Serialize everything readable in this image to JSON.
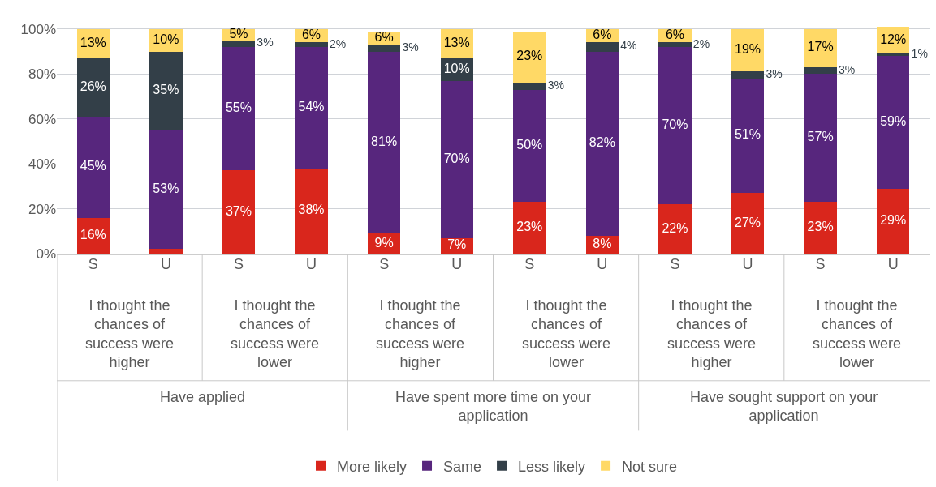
{
  "chart_data": {
    "type": "bar",
    "stacked": true,
    "categories": [
      "S",
      "U",
      "S",
      "U",
      "S",
      "U",
      "S",
      "U",
      "S",
      "U",
      "S",
      "U"
    ],
    "series": [
      {
        "name": "More likely",
        "color": "#d9261c",
        "values": [
          16,
          2,
          37,
          38,
          9,
          7,
          23,
          8,
          22,
          27,
          23,
          29
        ],
        "value_labels": [
          "16%",
          null,
          "37%",
          "38%",
          "9%",
          "7%",
          "23%",
          "8%",
          "22%",
          "27%",
          "23%",
          "29%"
        ]
      },
      {
        "name": "Same",
        "color": "#57267d",
        "values": [
          45,
          53,
          55,
          54,
          81,
          70,
          50,
          82,
          70,
          51,
          57,
          59
        ],
        "value_labels": [
          "45%",
          "53%",
          "55%",
          "54%",
          "81%",
          "70%",
          "50%",
          "82%",
          "70%",
          "51%",
          "57%",
          "59%"
        ]
      },
      {
        "name": "Less likely",
        "color": "#333f48",
        "values": [
          26,
          35,
          3,
          2,
          3,
          10,
          3,
          4,
          2,
          3,
          3,
          1
        ],
        "value_labels": [
          "26%",
          "35%",
          "3%",
          "2%",
          "3%",
          "10%",
          "3%",
          "4%",
          "2%",
          "3%",
          "3%",
          "1%"
        ]
      },
      {
        "name": "Not sure",
        "color": "#ffd966",
        "values": [
          13,
          10,
          5,
          6,
          6,
          13,
          23,
          6,
          6,
          19,
          17,
          12
        ],
        "value_labels": [
          "13%",
          "10%",
          "5%",
          "6%",
          "6%",
          "13%",
          "23%",
          "6%",
          "6%",
          "19%",
          "17%",
          "12%"
        ]
      }
    ],
    "annotations": [
      "I thought the chances of success were higher",
      "I thought the chances of success were lower",
      "I thought the chances of success were higher",
      "I thought the chances of success were lower",
      "I thought the chances of success were higher",
      "I thought the chances of success were lower",
      "Have applied",
      "Have spent more time on your application",
      "Have sought support on your application"
    ],
    "ylim": [
      0,
      101
    ],
    "yticks": [
      {
        "value": 0,
        "label": "0%"
      },
      {
        "value": 20,
        "label": "20%"
      },
      {
        "value": 40,
        "label": "40%"
      },
      {
        "value": 60,
        "label": "60%"
      },
      {
        "value": 80,
        "label": "80%"
      },
      {
        "value": 100,
        "label": "100%"
      }
    ],
    "grid": "y",
    "legend": "bottom"
  }
}
